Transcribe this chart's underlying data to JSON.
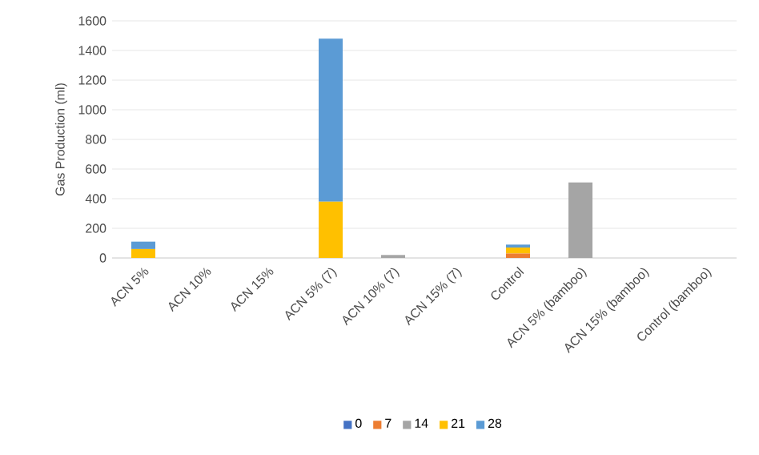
{
  "chart_data": {
    "type": "bar",
    "stacked": true,
    "ylabel": "Gas Production (ml)",
    "categories": [
      "ACN 5%",
      "ACN 10%",
      "ACN 15%",
      "ACN 5% (7)",
      "ACN 10% (7)",
      "ACN 15% (7)",
      "Control",
      "ACN 5% (bamboo)",
      "ACN 15% (bamboo)",
      "Control (bamboo)"
    ],
    "series": [
      {
        "name": "0",
        "color": "#4472c4",
        "values": [
          null,
          null,
          null,
          null,
          null,
          null,
          null,
          null,
          null,
          null
        ]
      },
      {
        "name": "7",
        "color": "#ed7d31",
        "values": [
          null,
          null,
          null,
          null,
          null,
          null,
          30,
          null,
          null,
          null
        ]
      },
      {
        "name": "14",
        "color": "#a5a5a5",
        "values": [
          null,
          null,
          null,
          null,
          20,
          null,
          null,
          510,
          null,
          null
        ]
      },
      {
        "name": "21",
        "color": "#ffc000",
        "values": [
          60,
          null,
          null,
          380,
          null,
          null,
          40,
          null,
          null,
          null
        ]
      },
      {
        "name": "28",
        "color": "#5b9bd5",
        "values": [
          50,
          null,
          null,
          1100,
          null,
          null,
          20,
          null,
          null,
          null
        ]
      }
    ],
    "ylim": [
      0,
      1600
    ],
    "yticks": [
      0,
      200,
      400,
      600,
      800,
      1000,
      1200,
      1400,
      1600
    ],
    "grid": "y",
    "legend": "bottom"
  }
}
